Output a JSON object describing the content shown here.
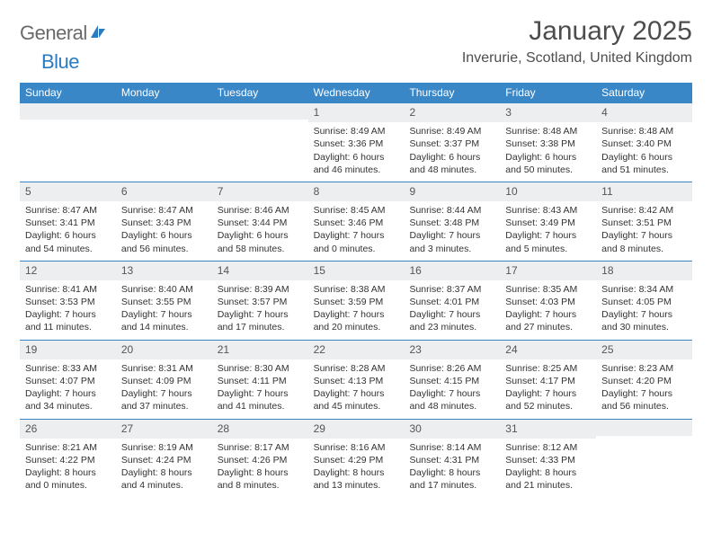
{
  "brand": {
    "part1": "General",
    "part2": "Blue"
  },
  "title": "January 2025",
  "location": "Inverurie, Scotland, United Kingdom",
  "colors": {
    "header_bg": "#3a87c8",
    "header_text": "#ffffff",
    "daynum_bg": "#eceef0",
    "week_border": "#3a87c8",
    "title_color": "#4d4d4d",
    "logo_gray": "#6a6a6a",
    "logo_blue": "#2a7bbf",
    "body_text": "#333333"
  },
  "typography": {
    "title_fontsize": 30,
    "location_fontsize": 16,
    "dow_fontsize": 12,
    "daynum_fontsize": 12,
    "body_fontsize": 10.5
  },
  "days_of_week": [
    "Sunday",
    "Monday",
    "Tuesday",
    "Wednesday",
    "Thursday",
    "Friday",
    "Saturday"
  ],
  "weeks": [
    [
      {
        "n": "",
        "sunrise": "",
        "sunset": "",
        "daylight": ""
      },
      {
        "n": "",
        "sunrise": "",
        "sunset": "",
        "daylight": ""
      },
      {
        "n": "",
        "sunrise": "",
        "sunset": "",
        "daylight": ""
      },
      {
        "n": "1",
        "sunrise": "Sunrise: 8:49 AM",
        "sunset": "Sunset: 3:36 PM",
        "daylight": "Daylight: 6 hours and 46 minutes."
      },
      {
        "n": "2",
        "sunrise": "Sunrise: 8:49 AM",
        "sunset": "Sunset: 3:37 PM",
        "daylight": "Daylight: 6 hours and 48 minutes."
      },
      {
        "n": "3",
        "sunrise": "Sunrise: 8:48 AM",
        "sunset": "Sunset: 3:38 PM",
        "daylight": "Daylight: 6 hours and 50 minutes."
      },
      {
        "n": "4",
        "sunrise": "Sunrise: 8:48 AM",
        "sunset": "Sunset: 3:40 PM",
        "daylight": "Daylight: 6 hours and 51 minutes."
      }
    ],
    [
      {
        "n": "5",
        "sunrise": "Sunrise: 8:47 AM",
        "sunset": "Sunset: 3:41 PM",
        "daylight": "Daylight: 6 hours and 54 minutes."
      },
      {
        "n": "6",
        "sunrise": "Sunrise: 8:47 AM",
        "sunset": "Sunset: 3:43 PM",
        "daylight": "Daylight: 6 hours and 56 minutes."
      },
      {
        "n": "7",
        "sunrise": "Sunrise: 8:46 AM",
        "sunset": "Sunset: 3:44 PM",
        "daylight": "Daylight: 6 hours and 58 minutes."
      },
      {
        "n": "8",
        "sunrise": "Sunrise: 8:45 AM",
        "sunset": "Sunset: 3:46 PM",
        "daylight": "Daylight: 7 hours and 0 minutes."
      },
      {
        "n": "9",
        "sunrise": "Sunrise: 8:44 AM",
        "sunset": "Sunset: 3:48 PM",
        "daylight": "Daylight: 7 hours and 3 minutes."
      },
      {
        "n": "10",
        "sunrise": "Sunrise: 8:43 AM",
        "sunset": "Sunset: 3:49 PM",
        "daylight": "Daylight: 7 hours and 5 minutes."
      },
      {
        "n": "11",
        "sunrise": "Sunrise: 8:42 AM",
        "sunset": "Sunset: 3:51 PM",
        "daylight": "Daylight: 7 hours and 8 minutes."
      }
    ],
    [
      {
        "n": "12",
        "sunrise": "Sunrise: 8:41 AM",
        "sunset": "Sunset: 3:53 PM",
        "daylight": "Daylight: 7 hours and 11 minutes."
      },
      {
        "n": "13",
        "sunrise": "Sunrise: 8:40 AM",
        "sunset": "Sunset: 3:55 PM",
        "daylight": "Daylight: 7 hours and 14 minutes."
      },
      {
        "n": "14",
        "sunrise": "Sunrise: 8:39 AM",
        "sunset": "Sunset: 3:57 PM",
        "daylight": "Daylight: 7 hours and 17 minutes."
      },
      {
        "n": "15",
        "sunrise": "Sunrise: 8:38 AM",
        "sunset": "Sunset: 3:59 PM",
        "daylight": "Daylight: 7 hours and 20 minutes."
      },
      {
        "n": "16",
        "sunrise": "Sunrise: 8:37 AM",
        "sunset": "Sunset: 4:01 PM",
        "daylight": "Daylight: 7 hours and 23 minutes."
      },
      {
        "n": "17",
        "sunrise": "Sunrise: 8:35 AM",
        "sunset": "Sunset: 4:03 PM",
        "daylight": "Daylight: 7 hours and 27 minutes."
      },
      {
        "n": "18",
        "sunrise": "Sunrise: 8:34 AM",
        "sunset": "Sunset: 4:05 PM",
        "daylight": "Daylight: 7 hours and 30 minutes."
      }
    ],
    [
      {
        "n": "19",
        "sunrise": "Sunrise: 8:33 AM",
        "sunset": "Sunset: 4:07 PM",
        "daylight": "Daylight: 7 hours and 34 minutes."
      },
      {
        "n": "20",
        "sunrise": "Sunrise: 8:31 AM",
        "sunset": "Sunset: 4:09 PM",
        "daylight": "Daylight: 7 hours and 37 minutes."
      },
      {
        "n": "21",
        "sunrise": "Sunrise: 8:30 AM",
        "sunset": "Sunset: 4:11 PM",
        "daylight": "Daylight: 7 hours and 41 minutes."
      },
      {
        "n": "22",
        "sunrise": "Sunrise: 8:28 AM",
        "sunset": "Sunset: 4:13 PM",
        "daylight": "Daylight: 7 hours and 45 minutes."
      },
      {
        "n": "23",
        "sunrise": "Sunrise: 8:26 AM",
        "sunset": "Sunset: 4:15 PM",
        "daylight": "Daylight: 7 hours and 48 minutes."
      },
      {
        "n": "24",
        "sunrise": "Sunrise: 8:25 AM",
        "sunset": "Sunset: 4:17 PM",
        "daylight": "Daylight: 7 hours and 52 minutes."
      },
      {
        "n": "25",
        "sunrise": "Sunrise: 8:23 AM",
        "sunset": "Sunset: 4:20 PM",
        "daylight": "Daylight: 7 hours and 56 minutes."
      }
    ],
    [
      {
        "n": "26",
        "sunrise": "Sunrise: 8:21 AM",
        "sunset": "Sunset: 4:22 PM",
        "daylight": "Daylight: 8 hours and 0 minutes."
      },
      {
        "n": "27",
        "sunrise": "Sunrise: 8:19 AM",
        "sunset": "Sunset: 4:24 PM",
        "daylight": "Daylight: 8 hours and 4 minutes."
      },
      {
        "n": "28",
        "sunrise": "Sunrise: 8:17 AM",
        "sunset": "Sunset: 4:26 PM",
        "daylight": "Daylight: 8 hours and 8 minutes."
      },
      {
        "n": "29",
        "sunrise": "Sunrise: 8:16 AM",
        "sunset": "Sunset: 4:29 PM",
        "daylight": "Daylight: 8 hours and 13 minutes."
      },
      {
        "n": "30",
        "sunrise": "Sunrise: 8:14 AM",
        "sunset": "Sunset: 4:31 PM",
        "daylight": "Daylight: 8 hours and 17 minutes."
      },
      {
        "n": "31",
        "sunrise": "Sunrise: 8:12 AM",
        "sunset": "Sunset: 4:33 PM",
        "daylight": "Daylight: 8 hours and 21 minutes."
      },
      {
        "n": "",
        "sunrise": "",
        "sunset": "",
        "daylight": ""
      }
    ]
  ]
}
